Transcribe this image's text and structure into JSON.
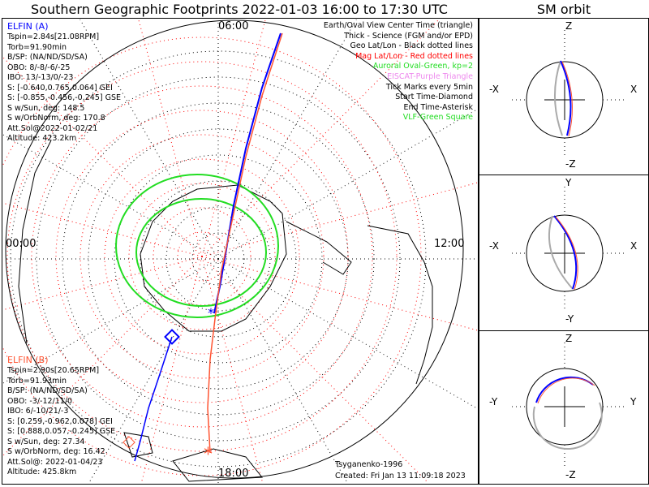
{
  "title": "Southern Geographic Footprints 2022-01-03 16:00 to 17:30 UTC",
  "orbit_title": "SM orbit",
  "time_labels": {
    "top": "06:00",
    "left": "00:00",
    "right": "12:00",
    "bottom": "18:00"
  },
  "elfin_a": {
    "name": "ELFIN (A)",
    "color": "#0000ff",
    "lines": [
      "Tspin=2.84s[21.08RPM]",
      "Torb=91.90min",
      "B/SP: (NA/ND/SD/SA)",
      "OBO: 8/-8/-6/-25",
      "IBO: 13/-13/0/-23",
      "S: [-0.640,0.765,0.064] GEI",
      "S: [-0.855,-0.456,-0.245] GSE",
      "S w/Sun, deg: 148.5",
      "S w/OrbNorm, deg: 170.8",
      "Att.Sol@2022-01-02/21",
      "Altitude: 423.2km"
    ]
  },
  "elfin_b": {
    "name": "ELFIN (B)",
    "color": "#ff5533",
    "lines": [
      "Tspin=2.90s[20.65RPM]",
      "Torb=91.93min",
      "B/SP: (NA/ND/SD/SA)",
      "OBO: -3/-12/11/0",
      "IBO: 6/-10/21/-3",
      "S: [0.259,-0.962,0.078] GEI",
      "S: [0.888,0.057,-0.245] GSE",
      "S w/Sun, deg: 27.34",
      "S w/OrbNorm, deg: 16.42",
      "Att.Sol@: 2022-01-04/23",
      "Altitude: 425.8km"
    ]
  },
  "legend": [
    {
      "text": "Earth/Oval View Center Time (triangle)",
      "color": "#000000"
    },
    {
      "text": "Thick - Science (FGM and/or EPD)",
      "color": "#000000"
    },
    {
      "text": "Geo Lat/Lon - Black dotted lines",
      "color": "#000000"
    },
    {
      "text": "Mag Lat/Lon - Red dotted lines",
      "color": "#ff0000"
    },
    {
      "text": "Auroral Oval-Green, kp=2",
      "color": "#22dd22"
    },
    {
      "text": "EISCAT-Purple Triangle",
      "color": "#ee88ee"
    },
    {
      "text": "Tick Marks every 5min",
      "color": "#000000"
    },
    {
      "text": "Start Time-Diamond",
      "color": "#000000"
    },
    {
      "text": "End Time-Asterisk",
      "color": "#000000"
    },
    {
      "text": "VLF-Green Square",
      "color": "#22dd22"
    }
  ],
  "footer": {
    "model": "Tsyganenko-1996",
    "created": "Created: Fri Jan 13 11:09:18 2023"
  },
  "panels": [
    {
      "top": "Z",
      "bottom": "-Z",
      "left": "-X",
      "right": "X"
    },
    {
      "top": "Y",
      "bottom": "-Y",
      "left": "-X",
      "right": "X"
    },
    {
      "top": "Z",
      "bottom": "-Z",
      "left": "-Y",
      "right": "Y"
    }
  ]
}
